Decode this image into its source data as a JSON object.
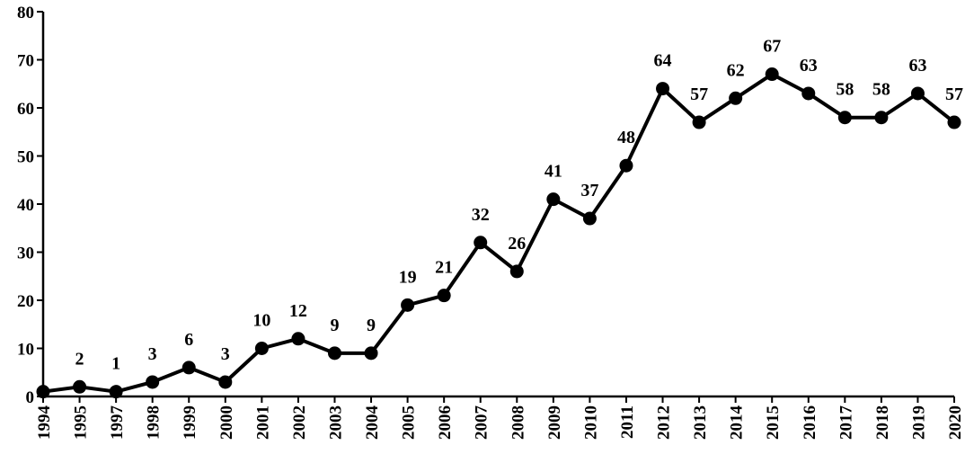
{
  "chart_data": {
    "type": "line",
    "title": "",
    "xlabel": "",
    "ylabel": "",
    "ylim": [
      0,
      80
    ],
    "yticks": [
      0,
      10,
      20,
      30,
      40,
      50,
      60,
      70,
      80
    ],
    "grid": false,
    "legend": "none",
    "series_color": "#000000",
    "categories": [
      "1994",
      "1995",
      "1997",
      "1998",
      "1999",
      "2000",
      "2001",
      "2002",
      "2003",
      "2004",
      "2005",
      "2006",
      "2007",
      "2008",
      "2009",
      "2010",
      "2011",
      "2012",
      "2013",
      "2014",
      "2015",
      "2016",
      "2017",
      "2018",
      "2019",
      "2020"
    ],
    "values": [
      1,
      2,
      1,
      3,
      6,
      3,
      10,
      12,
      9,
      9,
      19,
      21,
      32,
      26,
      41,
      37,
      48,
      64,
      57,
      62,
      67,
      63,
      58,
      58,
      63,
      57
    ],
    "data_labels": [
      "",
      "2",
      "1",
      "3",
      "6",
      "3",
      "10",
      "12",
      "9",
      "9",
      "19",
      "21",
      "32",
      "26",
      "41",
      "37",
      "48",
      "64",
      "57",
      "62",
      "67",
      "63",
      "58",
      "58",
      "63",
      "57"
    ]
  }
}
